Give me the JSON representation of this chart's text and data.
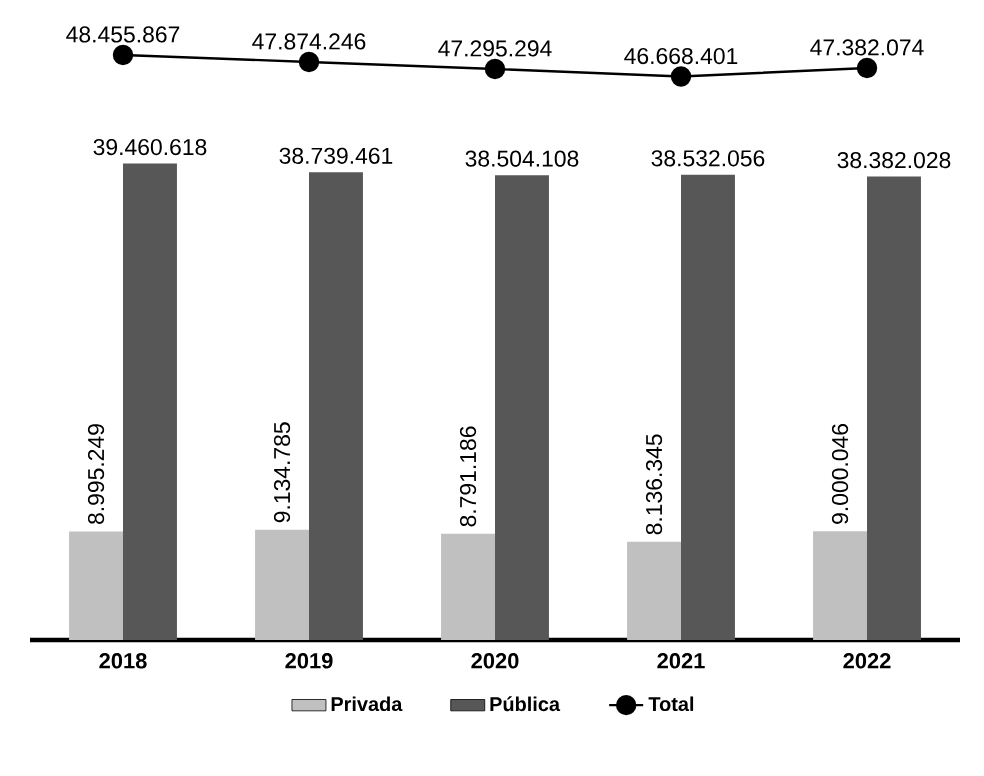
{
  "chart_data": {
    "type": "bar",
    "categories": [
      "2018",
      "2019",
      "2020",
      "2021",
      "2022"
    ],
    "series": [
      {
        "name": "Privada",
        "color": "#c0c0c0",
        "values": [
          8995249,
          9134785,
          8791186,
          8136345,
          9000046
        ],
        "value_labels": [
          "8.995.249",
          "9.134.785",
          "8.791.186",
          "8.136.345",
          "9.000.046"
        ]
      },
      {
        "name": "Pública",
        "color": "#575757",
        "values": [
          39460618,
          38739461,
          38504108,
          38532056,
          38382028
        ],
        "value_labels": [
          "39.460.618",
          "38.739.461",
          "38.504.108",
          "38.532.056",
          "38.382.028"
        ]
      },
      {
        "name": "Total",
        "type": "line",
        "color": "#000000",
        "marker": "circle",
        "values": [
          48455867,
          47874246,
          47295294,
          46668401,
          47382074
        ],
        "value_labels": [
          "48.455.867",
          "47.874.246",
          "47.295.294",
          "46.668.401",
          "47.382.074"
        ]
      }
    ],
    "tick_labels": "x",
    "legend": "bottom",
    "grid": false
  }
}
